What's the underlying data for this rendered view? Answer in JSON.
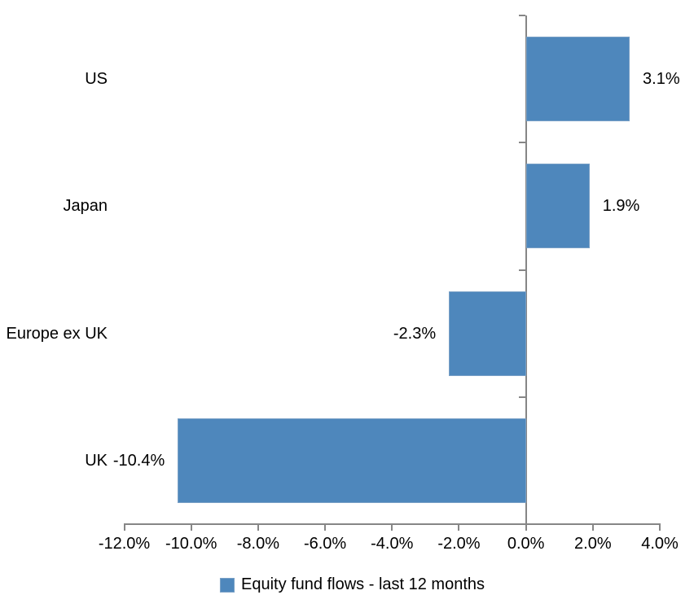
{
  "chart_data": {
    "type": "bar",
    "orientation": "horizontal",
    "title": "",
    "categories": [
      "US",
      "Japan",
      "Europe ex UK",
      "UK"
    ],
    "series": [
      {
        "name": "Equity fund flows - last 12 months",
        "values": [
          3.1,
          1.9,
          -2.3,
          -10.4
        ],
        "value_labels": [
          "3.1%",
          "1.9%",
          "-2.3%",
          "-10.4%"
        ]
      }
    ],
    "xlabel": "",
    "ylabel": "",
    "xlim": [
      -12,
      4
    ],
    "x_tick_step": 2,
    "x_tick_values": [
      -12,
      -10,
      -8,
      -6,
      -4,
      -2,
      0,
      2,
      4
    ],
    "x_tick_labels": [
      "-12.0%",
      "-10.0%",
      "-8.0%",
      "-6.0%",
      "-4.0%",
      "-2.0%",
      "0.0%",
      "2.0%",
      "4.0%"
    ],
    "grid": false,
    "legend_position": "bottom",
    "colors": {
      "bar_fill": "#4E87BC",
      "bar_border": "#79a0c6",
      "axis": "#868686",
      "text": "#000000",
      "background": "#FFFFFF"
    }
  },
  "legend": {
    "label": "Equity fund flows - last 12 months"
  }
}
